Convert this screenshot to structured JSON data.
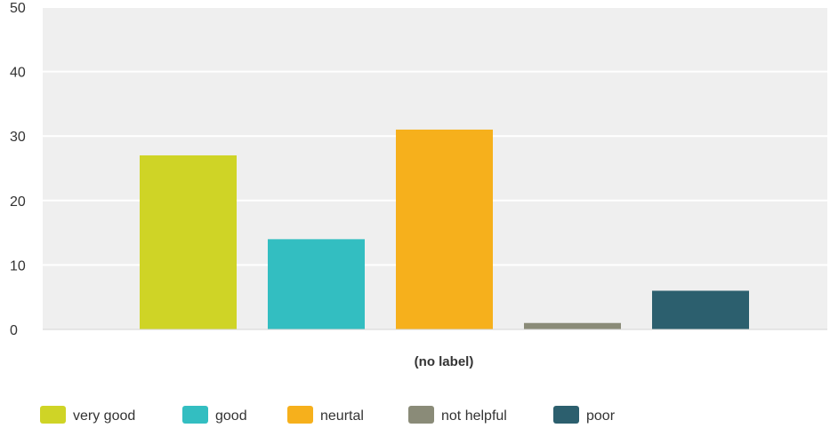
{
  "chart_data": {
    "type": "bar",
    "categories": [
      "(no label)"
    ],
    "series": [
      {
        "name": "very good",
        "values": [
          27
        ],
        "color": "#cfd426"
      },
      {
        "name": "good",
        "values": [
          14
        ],
        "color": "#33bec1"
      },
      {
        "name": "neurtal",
        "values": [
          31
        ],
        "color": "#f6b01c"
      },
      {
        "name": "not helpful",
        "values": [
          1
        ],
        "color": "#8a8b78"
      },
      {
        "name": "poor",
        "values": [
          6
        ],
        "color": "#2c5f6e"
      }
    ],
    "yticks": [
      "0",
      "10",
      "20",
      "30",
      "40",
      "50"
    ],
    "ylim": [
      0,
      50
    ],
    "grid": true,
    "legend_position": "bottom",
    "plot_background": "#efefef"
  }
}
